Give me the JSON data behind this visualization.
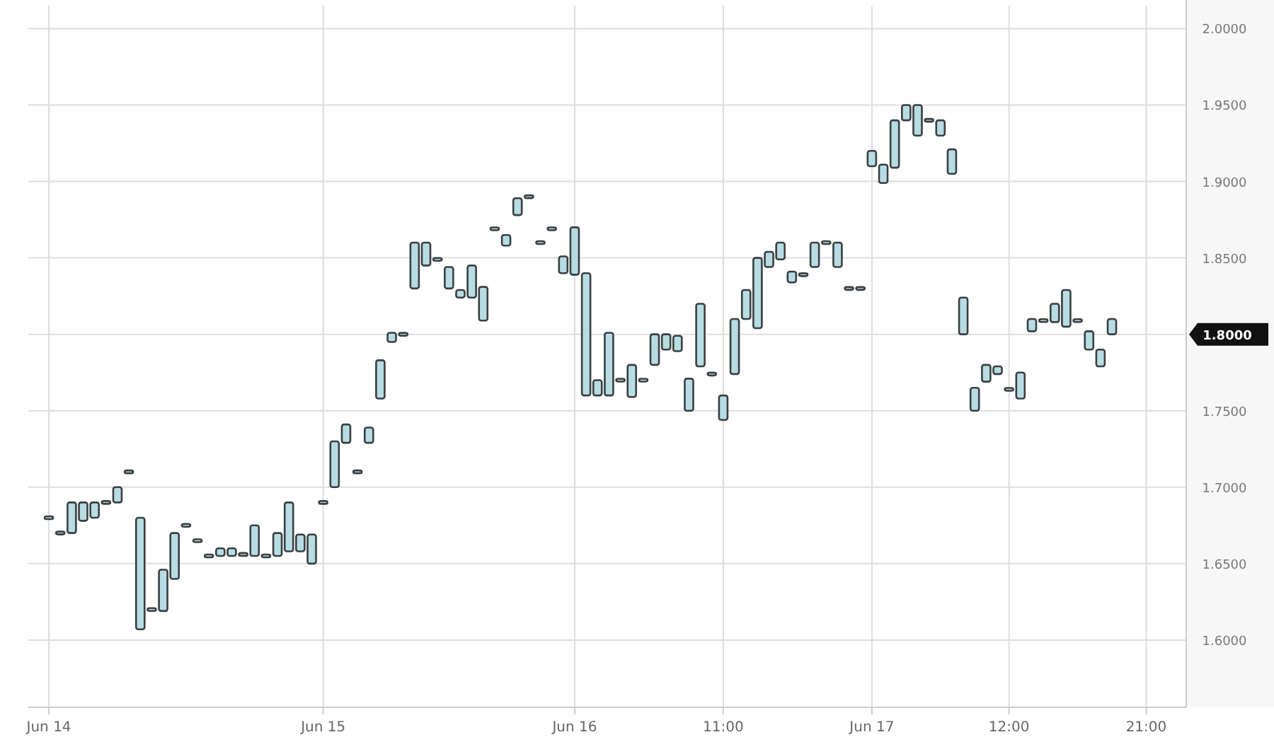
{
  "chart_data": {
    "type": "bar",
    "color": "#b7dde3",
    "categories": [
      "Jun 14",
      null,
      null,
      null,
      null,
      null,
      null,
      null,
      null,
      null,
      null,
      null,
      null,
      null,
      null,
      null,
      null,
      null,
      null,
      null,
      null,
      null,
      null,
      null,
      "Jun 15",
      null,
      null,
      null,
      null,
      null,
      null,
      null,
      null,
      null,
      null,
      null,
      null,
      null,
      null,
      null,
      null,
      null,
      null,
      null,
      null,
      null,
      "Jun 16",
      null,
      null,
      null,
      null,
      null,
      null,
      null,
      null,
      null,
      null,
      null,
      null,
      "11:00",
      null,
      null,
      null,
      null,
      null,
      null,
      null,
      null,
      null,
      null,
      null,
      null,
      "Jun 17",
      null,
      null,
      null,
      null,
      null,
      null,
      null,
      null,
      null,
      null,
      null,
      "12:00",
      null,
      null,
      null,
      null,
      null,
      null,
      null,
      null,
      null,
      null,
      null,
      "21:00"
    ],
    "base": [
      1.68,
      1.67,
      1.67,
      1.678,
      1.68,
      1.69,
      1.69,
      1.71,
      1.607,
      1.62,
      1.619,
      1.64,
      1.675,
      1.665,
      1.655,
      1.655,
      1.655,
      1.656,
      1.655,
      1.655,
      1.655,
      1.658,
      1.658,
      1.65,
      1.69,
      1.7,
      1.729,
      1.71,
      1.729,
      1.758,
      1.795,
      1.8,
      1.83,
      1.845,
      1.849,
      1.83,
      1.824,
      1.824,
      1.809,
      1.869,
      1.858,
      1.878,
      1.89,
      1.86,
      1.869,
      1.84,
      1.839,
      1.76,
      1.76,
      1.76,
      1.77,
      1.759,
      1.77,
      1.78,
      1.79,
      1.789,
      1.75,
      1.779,
      1.774,
      1.744,
      1.774,
      1.81,
      1.804,
      1.844,
      1.849,
      1.834,
      1.839,
      1.844,
      1.86,
      1.844,
      1.83,
      1.83,
      1.91,
      1.899,
      1.909,
      1.94,
      1.93,
      1.94,
      1.93,
      1.905,
      1.8,
      1.75,
      1.769,
      1.774,
      1.764,
      1.758,
      1.802,
      1.809,
      1.808,
      1.805,
      1.809,
      1.79,
      1.779,
      1.8,
      null,
      null,
      null
    ],
    "values": [
      0,
      0,
      0.02,
      0.012,
      0.01,
      0,
      0.01,
      0,
      0.073,
      0,
      0.027,
      0.03,
      0,
      0,
      0,
      0.005,
      0.005,
      0,
      0.02,
      0,
      0.015,
      0.032,
      0.011,
      0.019,
      0,
      0.03,
      0.012,
      0,
      0.01,
      0.025,
      0.006,
      0,
      0.03,
      0.015,
      0,
      0.014,
      0.005,
      0.021,
      0.022,
      0,
      0.007,
      0.011,
      0,
      0,
      0,
      0.011,
      0.031,
      0.08,
      0.01,
      0.041,
      0,
      0.021,
      0,
      0.02,
      0.01,
      0.01,
      0.021,
      0.041,
      0,
      0.016,
      0.036,
      0.019,
      0.046,
      0.01,
      0.011,
      0.007,
      0,
      0.016,
      0,
      0.016,
      0,
      0,
      0.01,
      0.012,
      0.031,
      0.01,
      0.02,
      0,
      0.01,
      0.016,
      0.024,
      0.015,
      0.011,
      0.005,
      0,
      0.017,
      0.008,
      0,
      0.012,
      0.024,
      0,
      0.012,
      0.011,
      0.01,
      null,
      null,
      null
    ],
    "ylim": [
      1.556,
      2.015
    ],
    "yticks": [
      {
        "value": 1.6,
        "label": "1.6000"
      },
      {
        "value": 1.65,
        "label": "1.6500"
      },
      {
        "value": 1.7,
        "label": "1.7000"
      },
      {
        "value": 1.75,
        "label": "1.7500"
      },
      {
        "value": 1.8,
        "label": null
      },
      {
        "value": 1.85,
        "label": "1.8500"
      },
      {
        "value": 1.9,
        "label": "1.9000"
      },
      {
        "value": 1.95,
        "label": "1.9500"
      },
      {
        "value": 2.0,
        "label": "2.0000"
      }
    ],
    "grid": true,
    "annotations": [
      "1.8000"
    ]
  }
}
